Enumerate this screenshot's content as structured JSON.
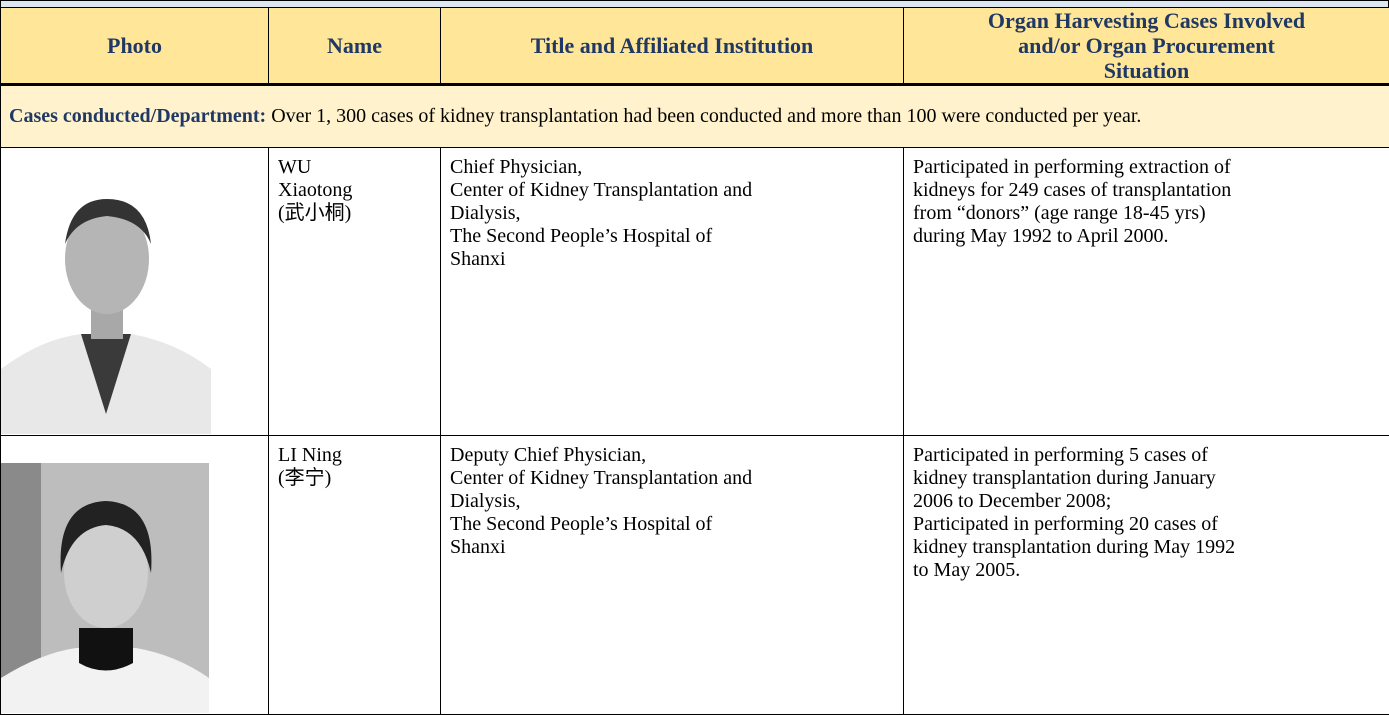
{
  "table": {
    "header": [
      "Photo",
      "Name",
      "Title and Affiliated Institution",
      [
        "Organ Harvesting Cases Involved",
        "and/or Organ Procurement",
        "Situation"
      ]
    ],
    "cases": {
      "label": "Cases conducted/Department:",
      "text": "Over 1, 300 cases of kidney transplantation had been conducted and more than 100 were conducted per year."
    },
    "rows": [
      {
        "name": [
          "WU",
          "Xiaotong",
          "(武小桐)"
        ],
        "title": [
          "Chief Physician,",
          "Center of Kidney Transplantation and",
          "Dialysis,",
          "The Second People’s Hospital of",
          "Shanxi"
        ],
        "cases": [
          "Participated in performing extraction of",
          "kidneys for 249 cases of transplantation",
          "from “donors” (age range 18-45 yrs)",
          "during May 1992 to April 2000."
        ]
      },
      {
        "name": [
          "LI Ning",
          "(李宁)"
        ],
        "title": [
          "Deputy Chief Physician,",
          "Center of Kidney Transplantation and",
          "Dialysis,",
          "The Second People’s Hospital of",
          "Shanxi"
        ],
        "cases": [
          "Participated in performing 5 cases of",
          "kidney transplantation during January",
          "2006 to December 2008;",
          "Participated in performing 20 cases of",
          "kidney transplantation during May 1992",
          "to May 2005."
        ]
      }
    ]
  }
}
